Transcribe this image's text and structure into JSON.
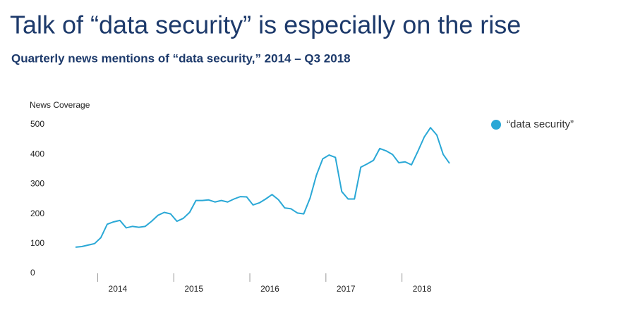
{
  "chart_data": {
    "type": "line",
    "title": "Talk of “data security” is especially on the rise",
    "subtitle": "Quarterly news mentions of “data security,” 2014 – Q3 2018",
    "y_label": "News Coverage",
    "categories": [
      null,
      null,
      null,
      null,
      null,
      null,
      null,
      "2014",
      null,
      null,
      null,
      null,
      null,
      null,
      null,
      null,
      null,
      null,
      null,
      "2015",
      null,
      null,
      null,
      null,
      null,
      null,
      null,
      null,
      null,
      null,
      null,
      "2016",
      null,
      null,
      null,
      null,
      null,
      null,
      null,
      null,
      null,
      null,
      null,
      "2017",
      null,
      null,
      null,
      null,
      null,
      null,
      null,
      null,
      null,
      null,
      null,
      "2018",
      null,
      null,
      null,
      null
    ],
    "series": [
      {
        "name": "“data security”",
        "color": "#2aa8d6",
        "values": [
          88,
          90,
          95,
          100,
          120,
          165,
          173,
          178,
          153,
          158,
          155,
          158,
          175,
          195,
          205,
          200,
          175,
          185,
          205,
          245,
          245,
          247,
          240,
          245,
          240,
          250,
          258,
          257,
          230,
          237,
          250,
          265,
          248,
          220,
          217,
          203,
          200,
          253,
          330,
          385,
          398,
          390,
          275,
          250,
          250,
          357,
          368,
          380,
          420,
          412,
          400,
          372,
          375,
          365,
          410,
          458,
          490,
          465,
          400,
          370
        ]
      }
    ],
    "ylim": [
      0,
      500
    ],
    "yticks": [
      0,
      100,
      200,
      300,
      400,
      500
    ],
    "legend": "right"
  }
}
